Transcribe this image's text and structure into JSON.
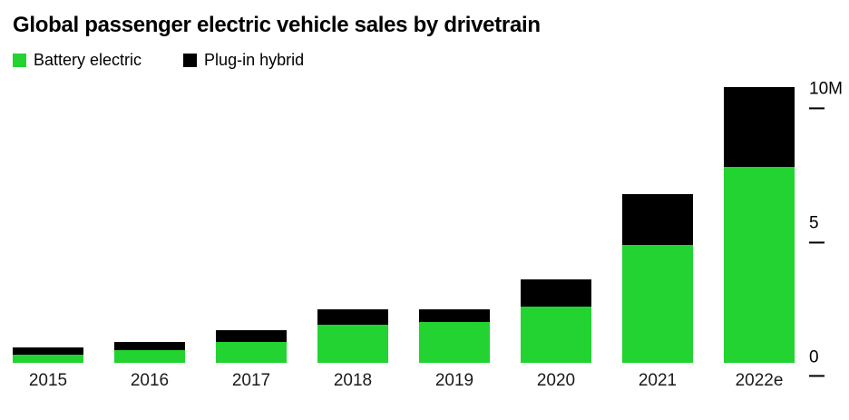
{
  "header": {
    "title": "Global passenger electric vehicle sales by drivetrain"
  },
  "legend": {
    "items": [
      {
        "label": "Battery electric",
        "color": "#23d331"
      },
      {
        "label": "Plug-in hybrid",
        "color": "#000000"
      }
    ]
  },
  "chart_data": {
    "type": "bar",
    "stacked": true,
    "title": "Global passenger electric vehicle sales by drivetrain",
    "xlabel": "",
    "ylabel": "",
    "unit": "millions of vehicles",
    "categories": [
      "2015",
      "2016",
      "2017",
      "2018",
      "2019",
      "2020",
      "2021",
      "2022e"
    ],
    "series": [
      {
        "name": "Battery electric",
        "color": "#23d331",
        "values": [
          0.3,
          0.45,
          0.75,
          1.4,
          1.5,
          2.1,
          4.4,
          7.3
        ]
      },
      {
        "name": "Plug-in hybrid",
        "color": "#000000",
        "values": [
          0.25,
          0.3,
          0.45,
          0.6,
          0.5,
          1.0,
          1.9,
          3.0
        ]
      }
    ],
    "ylim": [
      0,
      10.5
    ],
    "yticks": [
      {
        "value": 0,
        "label": "0"
      },
      {
        "value": 5,
        "label": "5"
      },
      {
        "value": 10,
        "label": "10M"
      }
    ],
    "grid": false,
    "legend_position": "top-left",
    "y_axis_side": "right"
  }
}
